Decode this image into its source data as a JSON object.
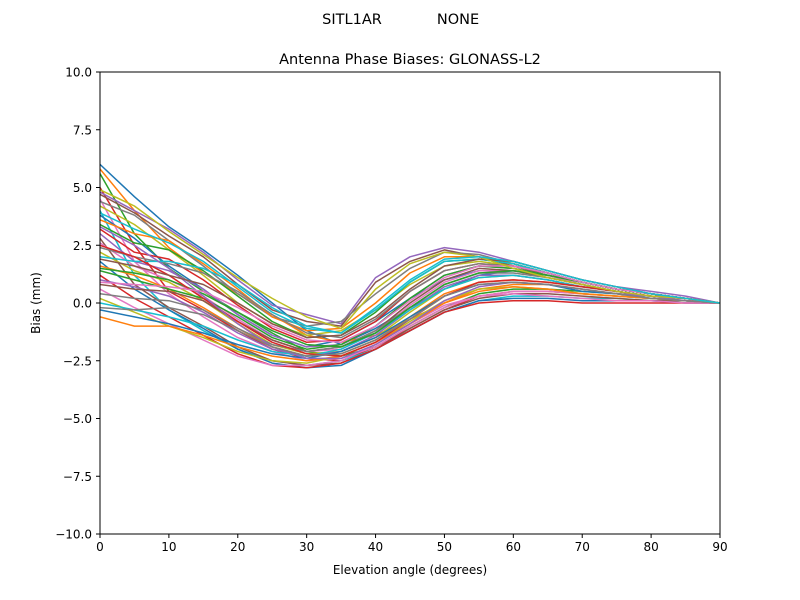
{
  "figure": {
    "suptitle_left": "SITL1AR",
    "suptitle_right": "NONE"
  },
  "chart_data": {
    "type": "line",
    "title": "Antenna Phase Biases: GLONASS-L2",
    "xlabel": "Elevation angle (degrees)",
    "ylabel": "Bias (mm)",
    "xlim": [
      0,
      90
    ],
    "ylim": [
      -10,
      10
    ],
    "xticks": [
      0,
      10,
      20,
      30,
      40,
      50,
      60,
      70,
      80,
      90
    ],
    "xtick_labels": [
      "0",
      "10",
      "20",
      "30",
      "40",
      "50",
      "60",
      "70",
      "80",
      "90"
    ],
    "yticks": [
      10,
      7.5,
      5,
      2.5,
      0,
      -2.5,
      -5,
      -7.5,
      -10
    ],
    "ytick_labels": [
      "10.0",
      "7.5",
      "5.0",
      "2.5",
      "0.0",
      "−2.5",
      "−5.0",
      "−7.5",
      "−10.0"
    ],
    "grid": false,
    "legend": "none",
    "x": [
      0,
      5,
      10,
      15,
      20,
      25,
      30,
      35,
      40,
      45,
      50,
      55,
      60,
      65,
      70,
      75,
      80,
      85,
      90
    ],
    "colors": [
      "#1f77b4",
      "#ff7f0e",
      "#2ca02c",
      "#d62728",
      "#9467bd",
      "#8c564b",
      "#e377c2",
      "#7f7f7f",
      "#bcbd22",
      "#17becf"
    ],
    "series": [
      {
        "values": [
          6.0,
          4.6,
          3.3,
          2.3,
          1.2,
          0.0,
          -1.2,
          -1.8,
          -1.1,
          -0.2,
          0.6,
          1.2,
          1.4,
          1.2,
          0.9,
          0.6,
          0.4,
          0.2,
          0.0
        ]
      },
      {
        "values": [
          5.8,
          4.0,
          2.4,
          1.3,
          0.4,
          -0.5,
          -1.4,
          -1.7,
          -1.4,
          -0.7,
          0.0,
          0.6,
          0.8,
          0.8,
          0.6,
          0.4,
          0.3,
          0.2,
          0.0
        ]
      },
      {
        "values": [
          5.6,
          3.0,
          1.5,
          0.5,
          -0.4,
          -1.3,
          -2.1,
          -2.3,
          -1.9,
          -1.0,
          -0.2,
          0.4,
          0.6,
          0.6,
          0.5,
          0.4,
          0.3,
          0.2,
          0.0
        ]
      },
      {
        "values": [
          5.0,
          2.5,
          0.5,
          -0.3,
          -1.2,
          -2.0,
          -2.4,
          -2.5,
          -1.9,
          -1.1,
          -0.3,
          0.3,
          0.5,
          0.5,
          0.4,
          0.3,
          0.2,
          0.1,
          0.0
        ]
      },
      {
        "values": [
          4.8,
          4.0,
          3.2,
          2.2,
          1.0,
          -0.1,
          -0.5,
          -0.9,
          1.1,
          2.0,
          2.4,
          2.2,
          1.8,
          1.4,
          1.0,
          0.7,
          0.5,
          0.3,
          0.0
        ]
      },
      {
        "values": [
          4.7,
          3.9,
          2.9,
          2.0,
          0.8,
          -0.3,
          -0.8,
          -1.0,
          0.9,
          1.8,
          2.3,
          2.0,
          1.6,
          1.2,
          0.9,
          0.6,
          0.4,
          0.2,
          0.0
        ]
      },
      {
        "values": [
          4.5,
          1.8,
          0.4,
          -0.6,
          -1.5,
          -2.1,
          -2.5,
          -2.4,
          -1.9,
          -1.0,
          -0.2,
          0.3,
          0.5,
          0.5,
          0.4,
          0.3,
          0.2,
          0.1,
          0.0
        ]
      },
      {
        "values": [
          4.4,
          3.8,
          2.7,
          1.6,
          0.4,
          -0.6,
          -1.0,
          -0.8,
          0.4,
          1.5,
          2.2,
          2.1,
          1.7,
          1.3,
          0.9,
          0.6,
          0.4,
          0.2,
          0.0
        ]
      },
      {
        "values": [
          4.2,
          3.4,
          2.3,
          1.2,
          0.0,
          -0.9,
          -1.4,
          -1.2,
          -0.3,
          0.8,
          1.6,
          1.8,
          1.6,
          1.3,
          0.9,
          0.6,
          0.4,
          0.2,
          0.0
        ]
      },
      {
        "values": [
          4.0,
          1.2,
          -0.3,
          -1.2,
          -2.0,
          -2.5,
          -2.7,
          -2.5,
          -2.0,
          -1.2,
          -0.4,
          0.1,
          0.3,
          0.3,
          0.2,
          0.2,
          0.1,
          0.1,
          0.0
        ]
      },
      {
        "values": [
          3.8,
          2.8,
          1.6,
          0.6,
          -0.5,
          -1.4,
          -1.9,
          -1.6,
          -0.8,
          0.2,
          1.0,
          1.4,
          1.4,
          1.2,
          0.9,
          0.6,
          0.4,
          0.2,
          0.0
        ]
      },
      {
        "values": [
          3.6,
          3.0,
          2.7,
          1.7,
          0.6,
          -0.6,
          -1.2,
          -1.1,
          0.0,
          1.3,
          2.0,
          2.0,
          1.7,
          1.3,
          0.9,
          0.6,
          0.4,
          0.2,
          0.0
        ]
      },
      {
        "values": [
          3.4,
          2.6,
          2.3,
          1.4,
          0.3,
          -0.8,
          -1.5,
          -1.4,
          -0.4,
          0.9,
          1.8,
          1.9,
          1.7,
          1.3,
          0.9,
          0.6,
          0.4,
          0.2,
          0.0
        ]
      },
      {
        "values": [
          3.2,
          2.2,
          1.9,
          1.0,
          -0.1,
          -1.1,
          -1.7,
          -1.6,
          -0.8,
          0.5,
          1.4,
          1.7,
          1.6,
          1.3,
          0.9,
          0.6,
          0.4,
          0.2,
          0.0
        ]
      },
      {
        "values": [
          3.0,
          1.8,
          1.4,
          0.6,
          -0.5,
          -1.4,
          -1.9,
          -1.8,
          -1.0,
          0.2,
          1.2,
          1.6,
          1.5,
          1.2,
          0.9,
          0.6,
          0.4,
          0.2,
          0.0
        ]
      },
      {
        "values": [
          2.8,
          0.8,
          -0.2,
          -1.0,
          -1.9,
          -2.5,
          -2.7,
          -2.6,
          -2.0,
          -1.1,
          -0.3,
          0.2,
          0.4,
          0.4,
          0.3,
          0.2,
          0.1,
          0.1,
          0.0
        ]
      },
      {
        "values": [
          2.6,
          1.6,
          1.0,
          0.3,
          -0.7,
          -1.6,
          -2.1,
          -2.0,
          -1.3,
          -0.1,
          0.9,
          1.4,
          1.4,
          1.2,
          0.8,
          0.5,
          0.3,
          0.2,
          0.0
        ]
      },
      {
        "values": [
          2.4,
          2.0,
          1.7,
          1.3,
          0.5,
          -0.5,
          -1.3,
          -1.5,
          -0.7,
          0.5,
          1.4,
          1.7,
          1.6,
          1.3,
          0.9,
          0.6,
          0.4,
          0.2,
          0.0
        ]
      },
      {
        "values": [
          2.2,
          1.4,
          0.9,
          0.1,
          -0.9,
          -1.8,
          -2.2,
          -2.1,
          -1.5,
          -0.4,
          0.6,
          1.1,
          1.2,
          1.0,
          0.7,
          0.5,
          0.3,
          0.2,
          0.0
        ]
      },
      {
        "values": [
          2.0,
          1.8,
          1.8,
          1.5,
          0.8,
          -0.2,
          -1.0,
          -1.3,
          -0.3,
          0.9,
          1.8,
          1.9,
          1.7,
          1.3,
          0.9,
          0.6,
          0.4,
          0.2,
          0.0
        ]
      },
      {
        "values": [
          1.8,
          0.6,
          -0.3,
          -1.1,
          -2.0,
          -2.6,
          -2.8,
          -2.7,
          -2.0,
          -1.2,
          -0.4,
          0.1,
          0.2,
          0.2,
          0.1,
          0.1,
          0.1,
          0.0,
          0.0
        ]
      },
      {
        "values": [
          1.6,
          1.2,
          0.6,
          -0.2,
          -1.1,
          -1.9,
          -2.3,
          -2.2,
          -1.6,
          -0.6,
          0.4,
          0.9,
          1.0,
          0.9,
          0.7,
          0.5,
          0.3,
          0.2,
          0.0
        ]
      },
      {
        "values": [
          1.4,
          1.0,
          0.6,
          0.2,
          -0.6,
          -1.5,
          -2.0,
          -1.8,
          -1.0,
          0.2,
          1.2,
          1.6,
          1.5,
          1.2,
          0.9,
          0.6,
          0.4,
          0.2,
          0.0
        ]
      },
      {
        "values": [
          1.2,
          0.2,
          -0.6,
          -1.4,
          -2.2,
          -2.7,
          -2.8,
          -2.6,
          -2.0,
          -1.2,
          -0.4,
          0.0,
          0.1,
          0.1,
          0.0,
          0.0,
          0.0,
          0.0,
          0.0
        ]
      },
      {
        "values": [
          1.0,
          0.7,
          0.3,
          -0.4,
          -1.3,
          -2.0,
          -2.3,
          -2.1,
          -1.4,
          -0.3,
          0.7,
          1.2,
          1.2,
          1.0,
          0.7,
          0.5,
          0.3,
          0.2,
          0.0
        ]
      },
      {
        "values": [
          0.8,
          0.6,
          0.5,
          0.1,
          -0.8,
          -1.6,
          -2.1,
          -1.9,
          -1.2,
          0.0,
          1.0,
          1.5,
          1.4,
          1.1,
          0.8,
          0.5,
          0.3,
          0.2,
          0.0
        ]
      },
      {
        "values": [
          0.6,
          -0.2,
          -0.9,
          -1.6,
          -2.3,
          -2.7,
          -2.7,
          -2.5,
          -1.8,
          -0.9,
          -0.1,
          0.3,
          0.4,
          0.3,
          0.2,
          0.1,
          0.1,
          0.0,
          0.0
        ]
      },
      {
        "values": [
          0.4,
          0.2,
          0.1,
          -0.3,
          -1.1,
          -1.8,
          -2.1,
          -1.9,
          -1.2,
          -0.2,
          0.8,
          1.3,
          1.3,
          1.1,
          0.8,
          0.5,
          0.3,
          0.2,
          0.0
        ]
      },
      {
        "values": [
          0.2,
          -0.4,
          -1.0,
          -1.5,
          -2.1,
          -2.5,
          -2.6,
          -2.3,
          -1.7,
          -0.8,
          0.1,
          0.6,
          0.7,
          0.6,
          0.4,
          0.3,
          0.2,
          0.1,
          0.0
        ]
      },
      {
        "values": [
          0.0,
          -0.3,
          -0.6,
          -1.0,
          -1.6,
          -2.1,
          -2.3,
          -2.0,
          -1.3,
          -0.3,
          0.6,
          1.1,
          1.2,
          1.0,
          0.7,
          0.5,
          0.3,
          0.2,
          0.0
        ]
      },
      {
        "values": [
          -0.3,
          -0.6,
          -0.9,
          -1.3,
          -1.8,
          -2.2,
          -2.4,
          -2.1,
          -1.5,
          -0.6,
          0.3,
          0.8,
          0.9,
          0.8,
          0.5,
          0.4,
          0.2,
          0.1,
          0.0
        ]
      },
      {
        "values": [
          -0.6,
          -1.0,
          -1.0,
          -1.4,
          -1.9,
          -2.3,
          -2.5,
          -2.3,
          -1.7,
          -0.9,
          0.0,
          0.5,
          0.7,
          0.6,
          0.4,
          0.3,
          0.2,
          0.1,
          0.0
        ]
      },
      {
        "values": [
          1.5,
          1.3,
          1.0,
          0.4,
          -0.4,
          -1.2,
          -1.8,
          -1.9,
          -1.3,
          -0.2,
          0.8,
          1.3,
          1.4,
          1.2,
          0.9,
          0.6,
          0.4,
          0.2,
          0.0
        ]
      },
      {
        "values": [
          2.5,
          2.0,
          1.2,
          0.2,
          -0.8,
          -1.7,
          -2.2,
          -2.3,
          -1.7,
          -0.7,
          0.3,
          0.9,
          1.0,
          0.9,
          0.7,
          0.5,
          0.3,
          0.2,
          0.0
        ]
      },
      {
        "values": [
          3.3,
          2.5,
          1.5,
          0.3,
          -0.9,
          -1.9,
          -2.4,
          -2.4,
          -1.8,
          -0.9,
          0.1,
          0.7,
          0.9,
          0.8,
          0.6,
          0.4,
          0.3,
          0.1,
          0.0
        ]
      },
      {
        "values": [
          1.9,
          1.6,
          1.2,
          0.8,
          0.0,
          -0.9,
          -1.5,
          -1.4,
          -0.6,
          0.6,
          1.6,
          1.9,
          1.8,
          1.4,
          1.0,
          0.7,
          0.4,
          0.2,
          0.0
        ]
      },
      {
        "values": [
          0.9,
          0.8,
          0.7,
          0.5,
          -0.2,
          -1.0,
          -1.6,
          -1.7,
          -1.0,
          0.1,
          1.1,
          1.6,
          1.6,
          1.3,
          0.9,
          0.6,
          0.4,
          0.2,
          0.0
        ]
      },
      {
        "values": [
          -0.2,
          -0.3,
          -0.2,
          -0.5,
          -1.2,
          -1.9,
          -2.3,
          -2.2,
          -1.6,
          -0.7,
          0.3,
          0.8,
          0.9,
          0.8,
          0.6,
          0.4,
          0.2,
          0.1,
          0.0
        ]
      },
      {
        "values": [
          4.9,
          4.2,
          3.1,
          2.1,
          1.1,
          0.2,
          -0.6,
          -1.1,
          0.6,
          1.7,
          2.2,
          2.0,
          1.5,
          1.1,
          0.8,
          0.5,
          0.3,
          0.2,
          0.0
        ]
      },
      {
        "values": [
          3.9,
          3.2,
          2.6,
          1.8,
          0.7,
          -0.4,
          -1.1,
          -1.3,
          -0.2,
          1.0,
          1.9,
          2.0,
          1.8,
          1.4,
          1.0,
          0.7,
          0.4,
          0.2,
          0.0
        ]
      }
    ]
  }
}
